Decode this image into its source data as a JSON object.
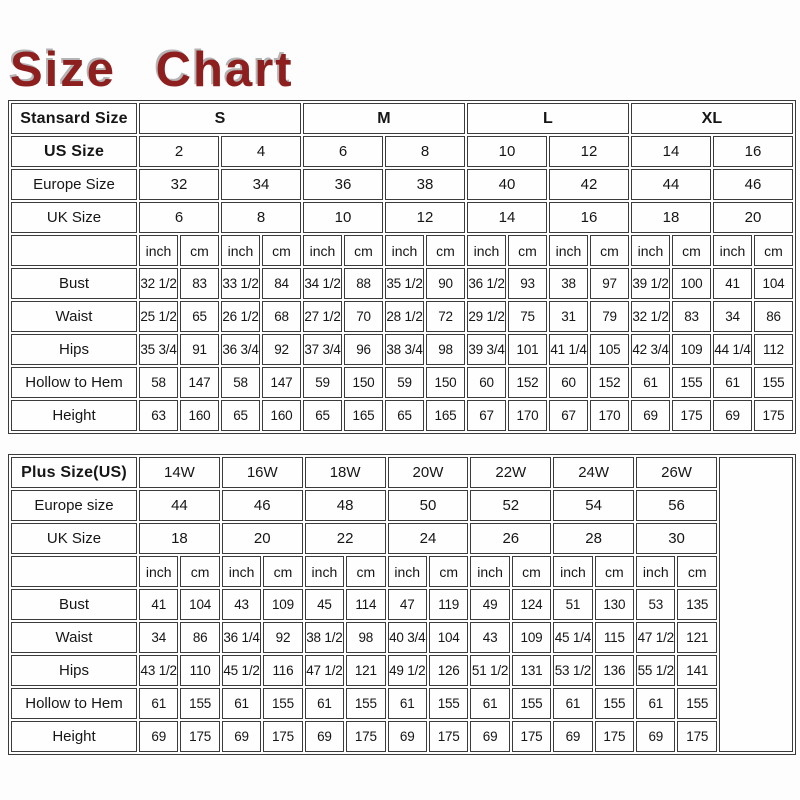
{
  "page": {
    "title": "Size Chart",
    "title_color": "#8e1f1f",
    "border_color": "#3b3b3b"
  },
  "chart_data": [
    {
      "type": "table",
      "name": "standard-size-table",
      "corner_label": "Stansard Size",
      "group_headers": [
        "S",
        "M",
        "L",
        "XL"
      ],
      "group_headers_bold": true,
      "size_rows": [
        {
          "label": "US Size",
          "bold": true,
          "values": [
            "2",
            "4",
            "6",
            "8",
            "10",
            "12",
            "14",
            "16"
          ]
        },
        {
          "label": "Europe Size",
          "bold": false,
          "values": [
            "32",
            "34",
            "36",
            "38",
            "40",
            "42",
            "44",
            "46"
          ]
        },
        {
          "label": "UK Size",
          "bold": false,
          "values": [
            "6",
            "8",
            "10",
            "12",
            "14",
            "16",
            "18",
            "20"
          ]
        }
      ],
      "unit_headers": [
        "inch",
        "cm"
      ],
      "measure_rows": [
        {
          "label": "Bust",
          "values": [
            "32 1/2",
            "83",
            "33 1/2",
            "84",
            "34 1/2",
            "88",
            "35 1/2",
            "90",
            "36 1/2",
            "93",
            "38",
            "97",
            "39 1/2",
            "100",
            "41",
            "104"
          ]
        },
        {
          "label": "Waist",
          "values": [
            "25 1/2",
            "65",
            "26 1/2",
            "68",
            "27 1/2",
            "70",
            "28 1/2",
            "72",
            "29 1/2",
            "75",
            "31",
            "79",
            "32 1/2",
            "83",
            "34",
            "86"
          ]
        },
        {
          "label": "Hips",
          "values": [
            "35 3/4",
            "91",
            "36 3/4",
            "92",
            "37 3/4",
            "96",
            "38 3/4",
            "98",
            "39 3/4",
            "101",
            "41 1/4",
            "105",
            "42 3/4",
            "109",
            "44 1/4",
            "112"
          ]
        },
        {
          "label": "Hollow to Hem",
          "values": [
            "58",
            "147",
            "58",
            "147",
            "59",
            "150",
            "59",
            "150",
            "60",
            "152",
            "60",
            "152",
            "61",
            "155",
            "61",
            "155"
          ]
        },
        {
          "label": "Height",
          "values": [
            "63",
            "160",
            "65",
            "160",
            "65",
            "165",
            "65",
            "165",
            "67",
            "170",
            "67",
            "170",
            "69",
            "175",
            "69",
            "175"
          ]
        }
      ],
      "trailing_empty_column": false
    },
    {
      "type": "table",
      "name": "plus-size-table",
      "corner_label": "Plus Size(US)",
      "group_headers": [
        "14W",
        "16W",
        "18W",
        "20W",
        "22W",
        "24W",
        "26W"
      ],
      "group_headers_bold": false,
      "size_rows": [
        {
          "label": "Europe size",
          "bold": false,
          "values": [
            "44",
            "46",
            "48",
            "50",
            "52",
            "54",
            "56"
          ]
        },
        {
          "label": "UK Size",
          "bold": false,
          "values": [
            "18",
            "20",
            "22",
            "24",
            "26",
            "28",
            "30"
          ]
        }
      ],
      "unit_headers": [
        "inch",
        "cm"
      ],
      "measure_rows": [
        {
          "label": "Bust",
          "values": [
            "41",
            "104",
            "43",
            "109",
            "45",
            "114",
            "47",
            "119",
            "49",
            "124",
            "51",
            "130",
            "53",
            "135"
          ]
        },
        {
          "label": "Waist",
          "values": [
            "34",
            "86",
            "36 1/4",
            "92",
            "38 1/2",
            "98",
            "40 3/4",
            "104",
            "43",
            "109",
            "45 1/4",
            "115",
            "47 1/2",
            "121"
          ]
        },
        {
          "label": "Hips",
          "values": [
            "43 1/2",
            "110",
            "45 1/2",
            "116",
            "47 1/2",
            "121",
            "49 1/2",
            "126",
            "51 1/2",
            "131",
            "53 1/2",
            "136",
            "55 1/2",
            "141"
          ]
        },
        {
          "label": "Hollow to Hem",
          "values": [
            "61",
            "155",
            "61",
            "155",
            "61",
            "155",
            "61",
            "155",
            "61",
            "155",
            "61",
            "155",
            "61",
            "155"
          ]
        },
        {
          "label": "Height",
          "values": [
            "69",
            "175",
            "69",
            "175",
            "69",
            "175",
            "69",
            "175",
            "69",
            "175",
            "69",
            "175",
            "69",
            "175"
          ]
        }
      ],
      "trailing_empty_column": true
    }
  ]
}
